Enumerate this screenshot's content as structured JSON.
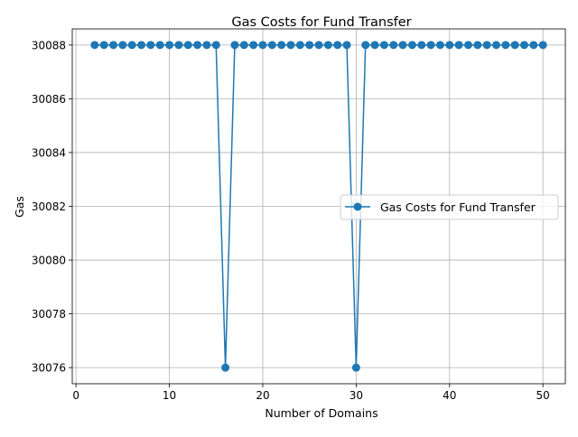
{
  "chart_data": {
    "type": "line",
    "title": "Gas Costs for Fund Transfer",
    "xlabel": "Number of Domains",
    "ylabel": "Gas",
    "xlim": [
      -0.4,
      52.4
    ],
    "ylim": [
      30075.4,
      30088.6
    ],
    "xticks": [
      0,
      10,
      20,
      30,
      40,
      50
    ],
    "yticks": [
      30076,
      30078,
      30080,
      30082,
      30084,
      30086,
      30088
    ],
    "grid": true,
    "legend_position": "center-right",
    "series": [
      {
        "name": "Gas Costs for Fund Transfer",
        "color": "#1f77b4",
        "marker": "circle",
        "x": [
          2,
          3,
          4,
          5,
          6,
          7,
          8,
          9,
          10,
          11,
          12,
          13,
          14,
          15,
          16,
          17,
          18,
          19,
          20,
          21,
          22,
          23,
          24,
          25,
          26,
          27,
          28,
          29,
          30,
          31,
          32,
          33,
          34,
          35,
          36,
          37,
          38,
          39,
          40,
          41,
          42,
          43,
          44,
          45,
          46,
          47,
          48,
          49,
          50
        ],
        "y": [
          30088,
          30088,
          30088,
          30088,
          30088,
          30088,
          30088,
          30088,
          30088,
          30088,
          30088,
          30088,
          30088,
          30088,
          30076,
          30088,
          30088,
          30088,
          30088,
          30088,
          30088,
          30088,
          30088,
          30088,
          30088,
          30088,
          30088,
          30088,
          30076,
          30088,
          30088,
          30088,
          30088,
          30088,
          30088,
          30088,
          30088,
          30088,
          30088,
          30088,
          30088,
          30088,
          30088,
          30088,
          30088,
          30088,
          30088,
          30088,
          30088
        ]
      }
    ]
  }
}
